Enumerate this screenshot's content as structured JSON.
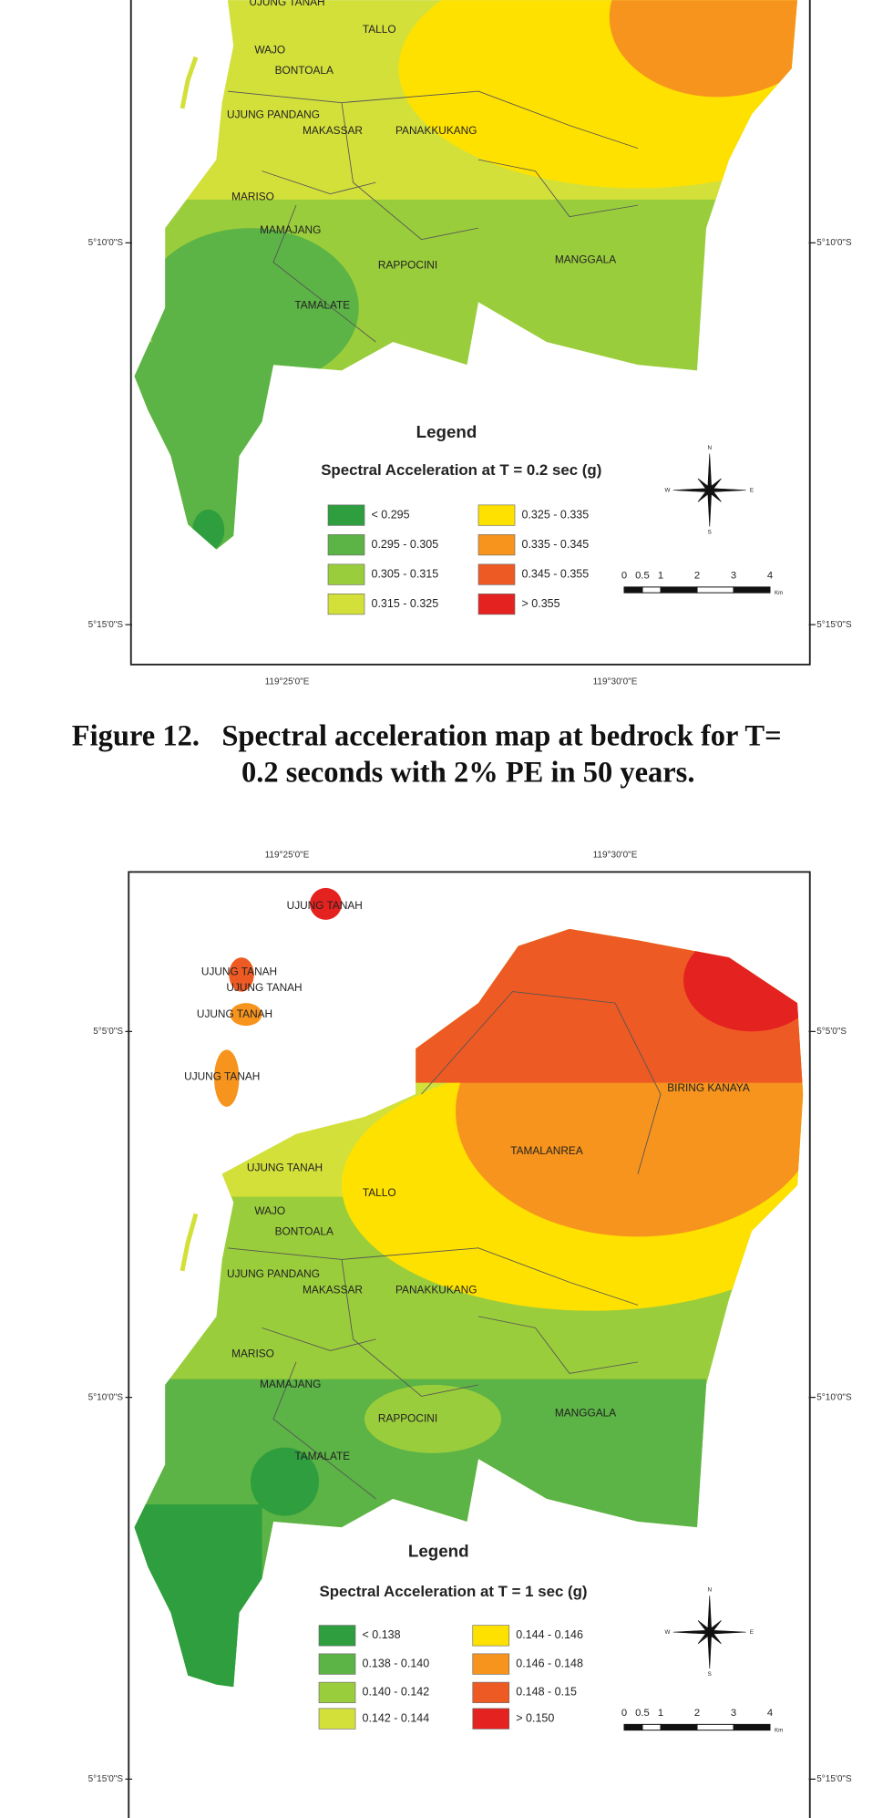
{
  "figures": [
    {
      "map": {
        "places": [
          "UJUNG TANAH",
          "TALLO",
          "WAJO",
          "BONTOALA",
          "UJUNG PANDANG",
          "MAKASSAR",
          "PANAKKUKANG",
          "MARISO",
          "MAMAJANG",
          "RAPPOCINI",
          "MANGGALA",
          "TAMALATE"
        ],
        "latitude_labels": {
          "left": [
            "5°10'0\"S",
            "5°15'0\"S"
          ],
          "right": [
            "5°10'0\"S",
            "5°15'0\"S"
          ]
        },
        "longitude_labels": [
          "119°25'0\"E",
          "119°30'0\"E"
        ],
        "legend": {
          "title": "Legend",
          "subtitle": "Spectral Acceleration at T = 0.2 sec (g)",
          "classes": [
            {
              "label": "< 0.295",
              "color": "#2e9e3e"
            },
            {
              "label": "0.295 - 0.305",
              "color": "#5cb346"
            },
            {
              "label": "0.305 - 0.315",
              "color": "#9acd3c"
            },
            {
              "label": "0.315 - 0.325",
              "color": "#d4e03a"
            },
            {
              "label": "0.325 - 0.335",
              "color": "#ffe100"
            },
            {
              "label": "0.335 - 0.345",
              "color": "#f7941d"
            },
            {
              "label": "0.345 - 0.355",
              "color": "#ee5a24"
            },
            {
              "label": "> 0.355",
              "color": "#e42320"
            }
          ]
        },
        "compass": [
          "N",
          "E",
          "S",
          "W"
        ],
        "scale": {
          "ticks": [
            0,
            0.5,
            1,
            2,
            3,
            4
          ],
          "unit": "Km"
        }
      },
      "caption": [
        "Figure 12.   Spectral acceleration map at bedrock for T=",
        "0.2 seconds with 2% PE in 50 years."
      ]
    },
    {
      "map": {
        "places": [
          "UJUNG TANAH",
          "UJUNG TANAH",
          "UJUNG TANAH",
          "UJUNG TANAH",
          "UJUNG TANAH",
          "BIRING KANAYA",
          "TAMALANREA",
          "UJUNG TANAH",
          "TALLO",
          "WAJO",
          "BONTOALA",
          "UJUNG PANDANG",
          "MAKASSAR",
          "PANAKKUKANG",
          "MARISO",
          "MAMAJANG",
          "RAPPOCINI",
          "MANGGALA",
          "TAMALATE"
        ],
        "latitude_labels": {
          "left": [
            "5°5'0\"S",
            "5°10'0\"S",
            "5°15'0\"S"
          ],
          "right": [
            "5°5'0\"S",
            "5°10'0\"S",
            "5°15'0\"S"
          ]
        },
        "longitude_labels": [
          "119°25'0\"E",
          "119°30'0\"E"
        ],
        "legend": {
          "title": "Legend",
          "subtitle": "Spectral Acceleration at T = 1 sec (g)",
          "classes": [
            {
              "label": "< 0.138",
              "color": "#2e9e3e"
            },
            {
              "label": "0.138 - 0.140",
              "color": "#5cb346"
            },
            {
              "label": "0.140 - 0.142",
              "color": "#9acd3c"
            },
            {
              "label": "0.142 - 0.144",
              "color": "#d4e03a"
            },
            {
              "label": "0.144 - 0.146",
              "color": "#ffe100"
            },
            {
              "label": "0.146 - 0.148",
              "color": "#f7941d"
            },
            {
              "label": "0.148 - 0.15",
              "color": "#ee5a24"
            },
            {
              "label": "> 0.150",
              "color": "#e42320"
            }
          ]
        },
        "compass": [
          "N",
          "E",
          "S",
          "W"
        ],
        "scale": {
          "ticks": [
            0,
            0.5,
            1,
            2,
            3,
            4
          ],
          "unit": "Km"
        }
      }
    }
  ]
}
